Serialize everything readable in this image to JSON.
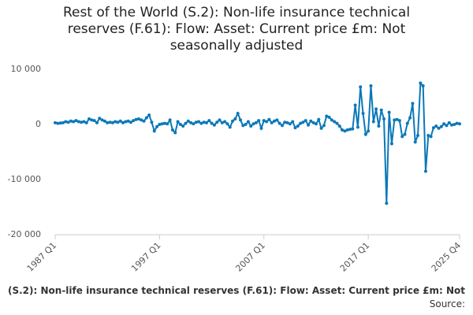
{
  "chart_data": {
    "type": "line",
    "title": "Rest of the World (S.2): Non-life insurance technical reserves (F.61): Flow: Asset: Current price £m: Not seasonally adjusted",
    "source": "Source:",
    "categories": [
      "1987 Q1",
      null,
      null,
      null,
      null,
      null,
      null,
      null,
      null,
      null,
      null,
      null,
      null,
      null,
      null,
      null,
      null,
      null,
      null,
      null,
      null,
      null,
      null,
      null,
      null,
      null,
      null,
      null,
      null,
      null,
      null,
      null,
      null,
      null,
      null,
      null,
      null,
      null,
      null,
      null,
      "1997 Q1",
      null,
      null,
      null,
      null,
      null,
      null,
      null,
      null,
      null,
      null,
      null,
      null,
      null,
      null,
      null,
      null,
      null,
      null,
      null,
      null,
      null,
      null,
      null,
      null,
      null,
      null,
      null,
      null,
      null,
      null,
      null,
      null,
      null,
      null,
      null,
      null,
      null,
      null,
      null,
      "2007 Q1",
      null,
      null,
      null,
      null,
      null,
      null,
      null,
      null,
      null,
      null,
      null,
      null,
      null,
      null,
      null,
      null,
      null,
      null,
      null,
      null,
      null,
      null,
      null,
      null,
      null,
      null,
      null,
      null,
      null,
      null,
      null,
      null,
      null,
      null,
      null,
      null,
      null,
      null,
      null,
      "2017 Q1",
      null,
      null,
      null,
      null,
      null,
      null,
      null,
      null,
      null,
      null,
      null,
      null,
      null,
      null,
      null,
      null,
      null,
      null,
      null,
      null,
      null,
      null,
      null,
      null,
      null,
      null,
      null,
      null,
      null,
      null,
      null,
      null,
      null,
      null,
      "2025 Q4"
    ],
    "series": [
      {
        "name": "(S.2): Non-life insurance technical reserves (F.61): Flow: Asset: Current price £m: Not",
        "color": "#0b78b8",
        "values": [
          300,
          200,
          250,
          300,
          500,
          400,
          600,
          500,
          700,
          500,
          400,
          500,
          300,
          1000,
          800,
          700,
          300,
          1100,
          800,
          600,
          300,
          400,
          300,
          500,
          400,
          600,
          300,
          500,
          600,
          400,
          700,
          900,
          1000,
          800,
          600,
          1200,
          1700,
          400,
          -1200,
          -400,
          0,
          100,
          200,
          100,
          800,
          -1000,
          -1500,
          500,
          0,
          -300,
          200,
          600,
          300,
          100,
          400,
          500,
          200,
          400,
          300,
          700,
          200,
          -100,
          400,
          800,
          300,
          500,
          100,
          -500,
          600,
          1000,
          2000,
          800,
          -200,
          0,
          500,
          -300,
          100,
          300,
          700,
          -700,
          700,
          500,
          900,
          300,
          600,
          800,
          200,
          -200,
          400,
          300,
          100,
          500,
          -600,
          -300,
          200,
          400,
          700,
          -100,
          600,
          300,
          100,
          900,
          -700,
          -200,
          1500,
          1300,
          800,
          500,
          200,
          -300,
          -1000,
          -1200,
          -1000,
          -900,
          -800,
          3500,
          -500,
          6800,
          2000,
          -1800,
          -1200,
          7000,
          500,
          2800,
          -300,
          2600,
          1000,
          -14300,
          2200,
          -3500,
          800,
          900,
          700,
          -2200,
          -1800,
          200,
          1200,
          3800,
          -3200,
          -2000,
          7500,
          7000,
          -8500,
          -2000,
          -2200,
          -600,
          -300,
          -700,
          -400,
          100,
          -200,
          300,
          -100,
          0,
          200,
          100
        ]
      }
    ],
    "ylim": [
      -20000,
      10000
    ],
    "yticks": [
      {
        "value": -20000,
        "label": "-20 000"
      },
      {
        "value": -10000,
        "label": "-10 000"
      },
      0,
      {
        "value": 10000,
        "label": "10 000"
      }
    ],
    "grid": false
  }
}
